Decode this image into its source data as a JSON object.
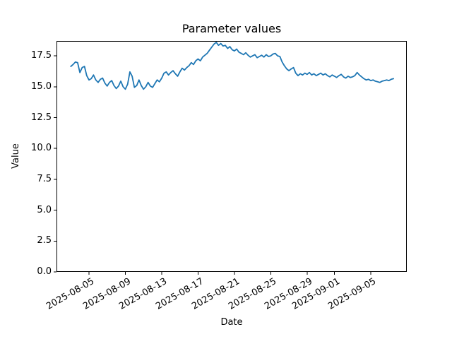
{
  "chart_data": {
    "type": "line",
    "title": "Parameter values",
    "xlabel": "Date",
    "ylabel": "Value",
    "line_color": "#1f77b4",
    "background_color": "#ffffff",
    "axis_color": "#000000",
    "legend": "none",
    "grid": false,
    "ylim": [
      0.0,
      18.73
    ],
    "y_tick_labels": [
      "0.0",
      "2.5",
      "5.0",
      "7.5",
      "10.0",
      "12.5",
      "15.0",
      "17.5"
    ],
    "x_tick_labels": [
      "2025-08-05",
      "2025-08-09",
      "2025-08-13",
      "2025-08-17",
      "2025-08-21",
      "2025-08-25",
      "2025-08-29",
      "2025-09-01",
      "2025-09-05"
    ],
    "series_start_date": "2025-08-03",
    "series_step_days": 0.25,
    "values": [
      16.65,
      16.8,
      17.0,
      16.95,
      16.15,
      16.55,
      16.65,
      15.9,
      15.55,
      15.65,
      15.95,
      15.55,
      15.35,
      15.6,
      15.7,
      15.3,
      15.05,
      15.35,
      15.5,
      15.1,
      14.85,
      15.05,
      15.45,
      15.0,
      14.8,
      15.2,
      16.2,
      15.85,
      14.95,
      15.1,
      15.55,
      15.1,
      14.8,
      15.0,
      15.35,
      15.05,
      14.95,
      15.25,
      15.55,
      15.4,
      15.7,
      16.1,
      16.2,
      15.95,
      16.15,
      16.3,
      16.05,
      15.85,
      16.2,
      16.5,
      16.35,
      16.55,
      16.7,
      16.95,
      16.8,
      17.1,
      17.25,
      17.1,
      17.4,
      17.55,
      17.7,
      17.95,
      18.2,
      18.45,
      18.6,
      18.35,
      18.5,
      18.3,
      18.35,
      18.1,
      18.25,
      18.0,
      17.9,
      18.05,
      17.8,
      17.7,
      17.6,
      17.75,
      17.55,
      17.4,
      17.5,
      17.6,
      17.35,
      17.45,
      17.55,
      17.4,
      17.6,
      17.45,
      17.5,
      17.65,
      17.7,
      17.5,
      17.45,
      17.0,
      16.7,
      16.45,
      16.3,
      16.45,
      16.55,
      16.1,
      15.9,
      16.05,
      15.95,
      16.1,
      16.0,
      16.15,
      15.95,
      16.05,
      15.9,
      16.0,
      16.1,
      15.95,
      16.05,
      15.9,
      15.8,
      15.95,
      15.85,
      15.75,
      15.9,
      16.0,
      15.8,
      15.7,
      15.85,
      15.75,
      15.8,
      15.9,
      16.15,
      15.95,
      15.8,
      15.65,
      15.55,
      15.6,
      15.5,
      15.55,
      15.45,
      15.4,
      15.35,
      15.45,
      15.5,
      15.55,
      15.5,
      15.6,
      15.65
    ]
  }
}
